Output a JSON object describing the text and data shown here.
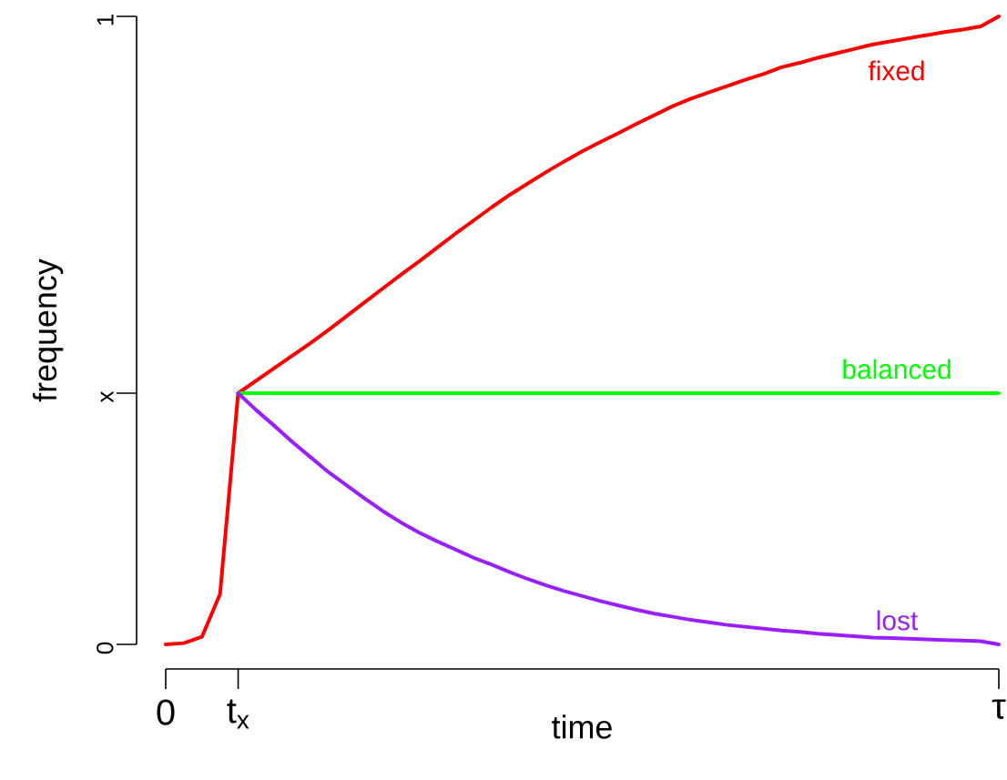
{
  "chart_data": {
    "type": "line",
    "xlabel": "time",
    "ylabel": "frequency",
    "ylim": [
      0,
      1
    ],
    "yticks": [
      0,
      {
        "value": 0.4,
        "label": "x"
      },
      1
    ],
    "categories": [
      "0",
      null,
      null,
      null,
      "t$_{x}$",
      null,
      null,
      null,
      null,
      null,
      null,
      null,
      null,
      null,
      null,
      null,
      null,
      null,
      null,
      null,
      null,
      null,
      null,
      null,
      null,
      null,
      null,
      null,
      null,
      null,
      null,
      null,
      null,
      null,
      null,
      null,
      null,
      null,
      null,
      null,
      null,
      null,
      null,
      null,
      null,
      null,
      "τ"
    ],
    "series": [
      {
        "name": null,
        "color": "#ff0000",
        "values": [
          0,
          0.002,
          0.012,
          0.08,
          0.4,
          null,
          null,
          null,
          null,
          null,
          null,
          null,
          null,
          null,
          null,
          null,
          null,
          null,
          null,
          null,
          null,
          null,
          null,
          null,
          null,
          null,
          null,
          null,
          null,
          null,
          null,
          null,
          null,
          null,
          null,
          null,
          null,
          null,
          null,
          null,
          null,
          null,
          null,
          null,
          null,
          null,
          null
        ]
      },
      {
        "name": "fixed",
        "color": "#ff0000",
        "values": [
          null,
          null,
          null,
          null,
          0.4,
          0.42,
          0.44,
          0.46,
          0.48,
          0.501,
          0.523,
          0.545,
          0.567,
          0.589,
          0.61,
          0.632,
          0.654,
          0.675,
          0.696,
          0.716,
          0.734,
          0.752,
          0.769,
          0.785,
          0.8,
          0.814,
          0.829,
          0.843,
          0.857,
          0.869,
          0.879,
          0.889,
          0.899,
          0.908,
          0.919,
          0.926,
          0.934,
          0.941,
          0.948,
          0.955,
          0.96,
          0.965,
          0.97,
          0.975,
          0.979,
          0.984,
          1
        ]
      },
      {
        "name": "balanced",
        "color": "#00ff00",
        "values": [
          null,
          null,
          null,
          null,
          0.4,
          0.4,
          0.4,
          0.4,
          0.4,
          0.4,
          0.4,
          0.4,
          0.4,
          0.4,
          0.4,
          0.4,
          0.4,
          0.4,
          0.4,
          0.4,
          0.4,
          0.4,
          0.4,
          0.4,
          0.4,
          0.4,
          0.4,
          0.4,
          0.4,
          0.4,
          0.4,
          0.4,
          0.4,
          0.4,
          0.4,
          0.4,
          0.4,
          0.4,
          0.4,
          0.4,
          0.4,
          0.4,
          0.4,
          0.4,
          0.4,
          0.4,
          0.4
        ]
      },
      {
        "name": "lost",
        "color": "#9a1fff",
        "values": [
          null,
          null,
          null,
          null,
          0.4,
          0.373,
          0.348,
          0.322,
          0.298,
          0.274,
          0.253,
          0.232,
          0.212,
          0.194,
          0.178,
          0.164,
          0.151,
          0.138,
          0.127,
          0.115,
          0.104,
          0.094,
          0.085,
          0.077,
          0.069,
          0.062,
          0.055,
          0.049,
          0.044,
          0.039,
          0.035,
          0.031,
          0.028,
          0.025,
          0.022,
          0.02,
          0.017,
          0.015,
          0.013,
          0.011,
          0.01,
          0.009,
          0.008,
          0.007,
          0.006,
          0.005,
          0
        ]
      }
    ]
  }
}
